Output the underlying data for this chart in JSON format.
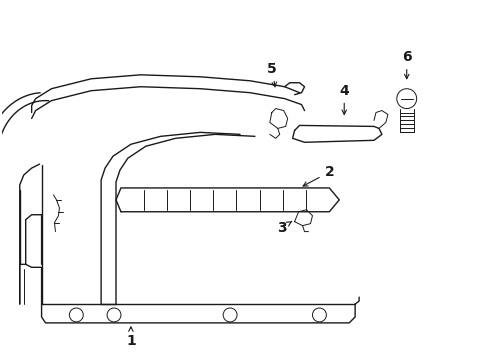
{
  "bg_color": "#ffffff",
  "line_color": "#1a1a1a",
  "lw": 1.0,
  "tlw": 0.7,
  "figsize": [
    4.89,
    3.6
  ],
  "dpi": 100,
  "font_size": 10,
  "font_weight": "bold"
}
